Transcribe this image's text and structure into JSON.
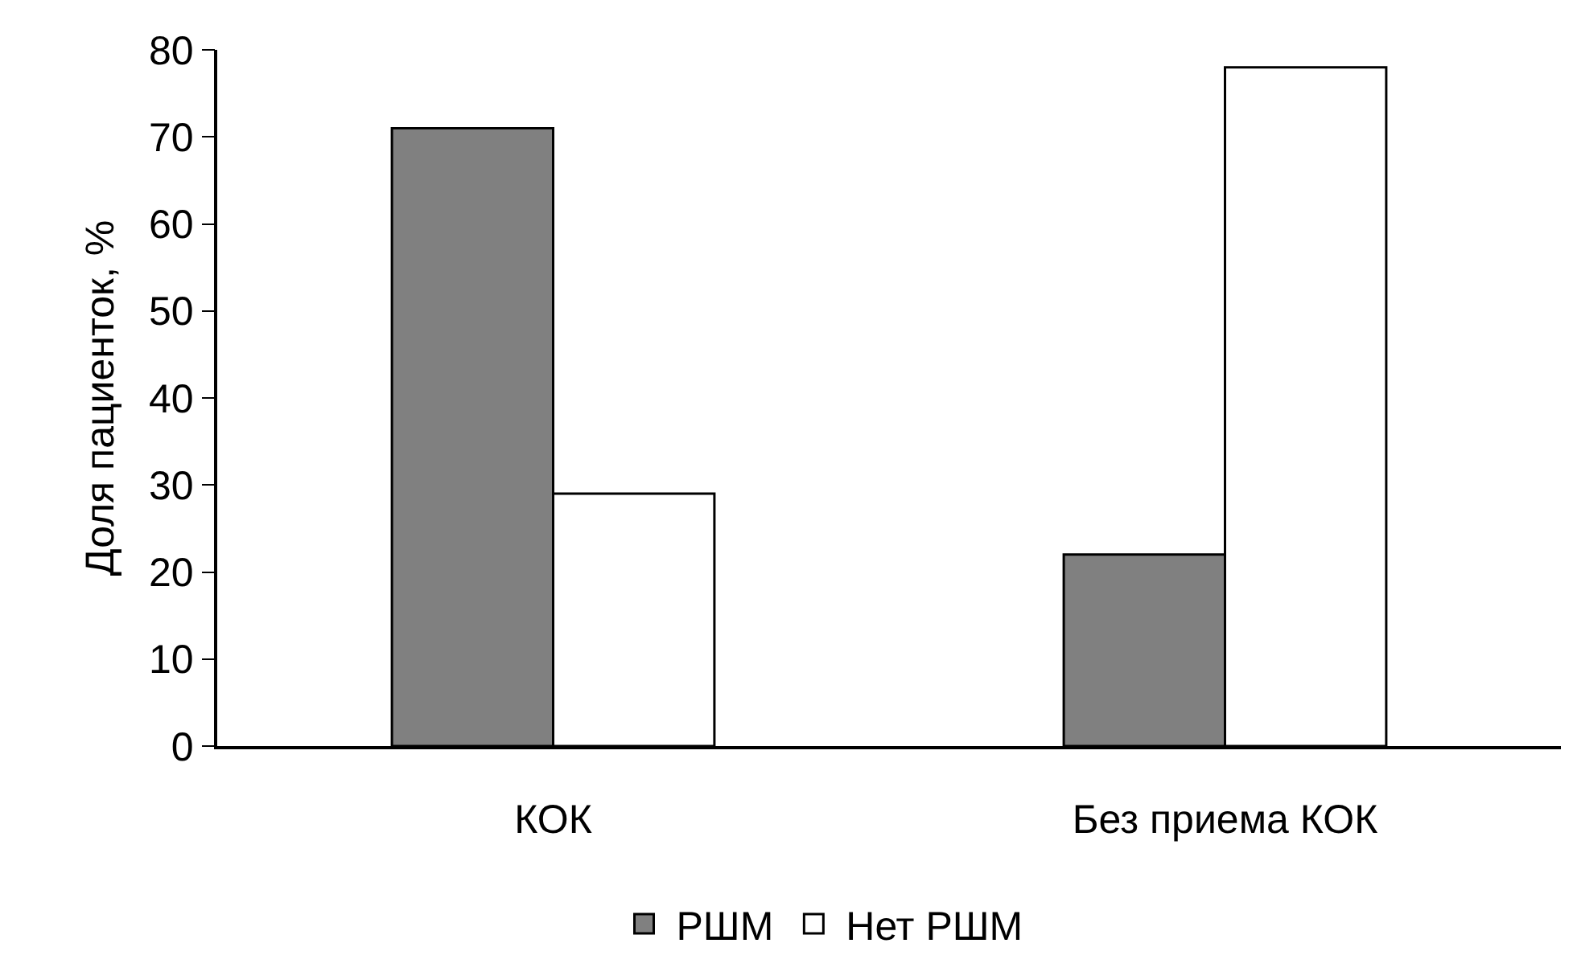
{
  "chart_data": {
    "type": "bar",
    "ylabel": "Доля пациенток, %",
    "categories": [
      "КОК",
      "Без приема КОК"
    ],
    "series": [
      {
        "name": "РШМ",
        "color": "#808080",
        "values": [
          71,
          22
        ]
      },
      {
        "name": "Нет РШМ",
        "color": "#ffffff",
        "values": [
          29,
          78
        ]
      }
    ],
    "ylim": [
      0,
      80
    ],
    "yticks": [
      0,
      10,
      20,
      30,
      40,
      50,
      60,
      70,
      80
    ],
    "grid": false,
    "legend": "bottom"
  }
}
